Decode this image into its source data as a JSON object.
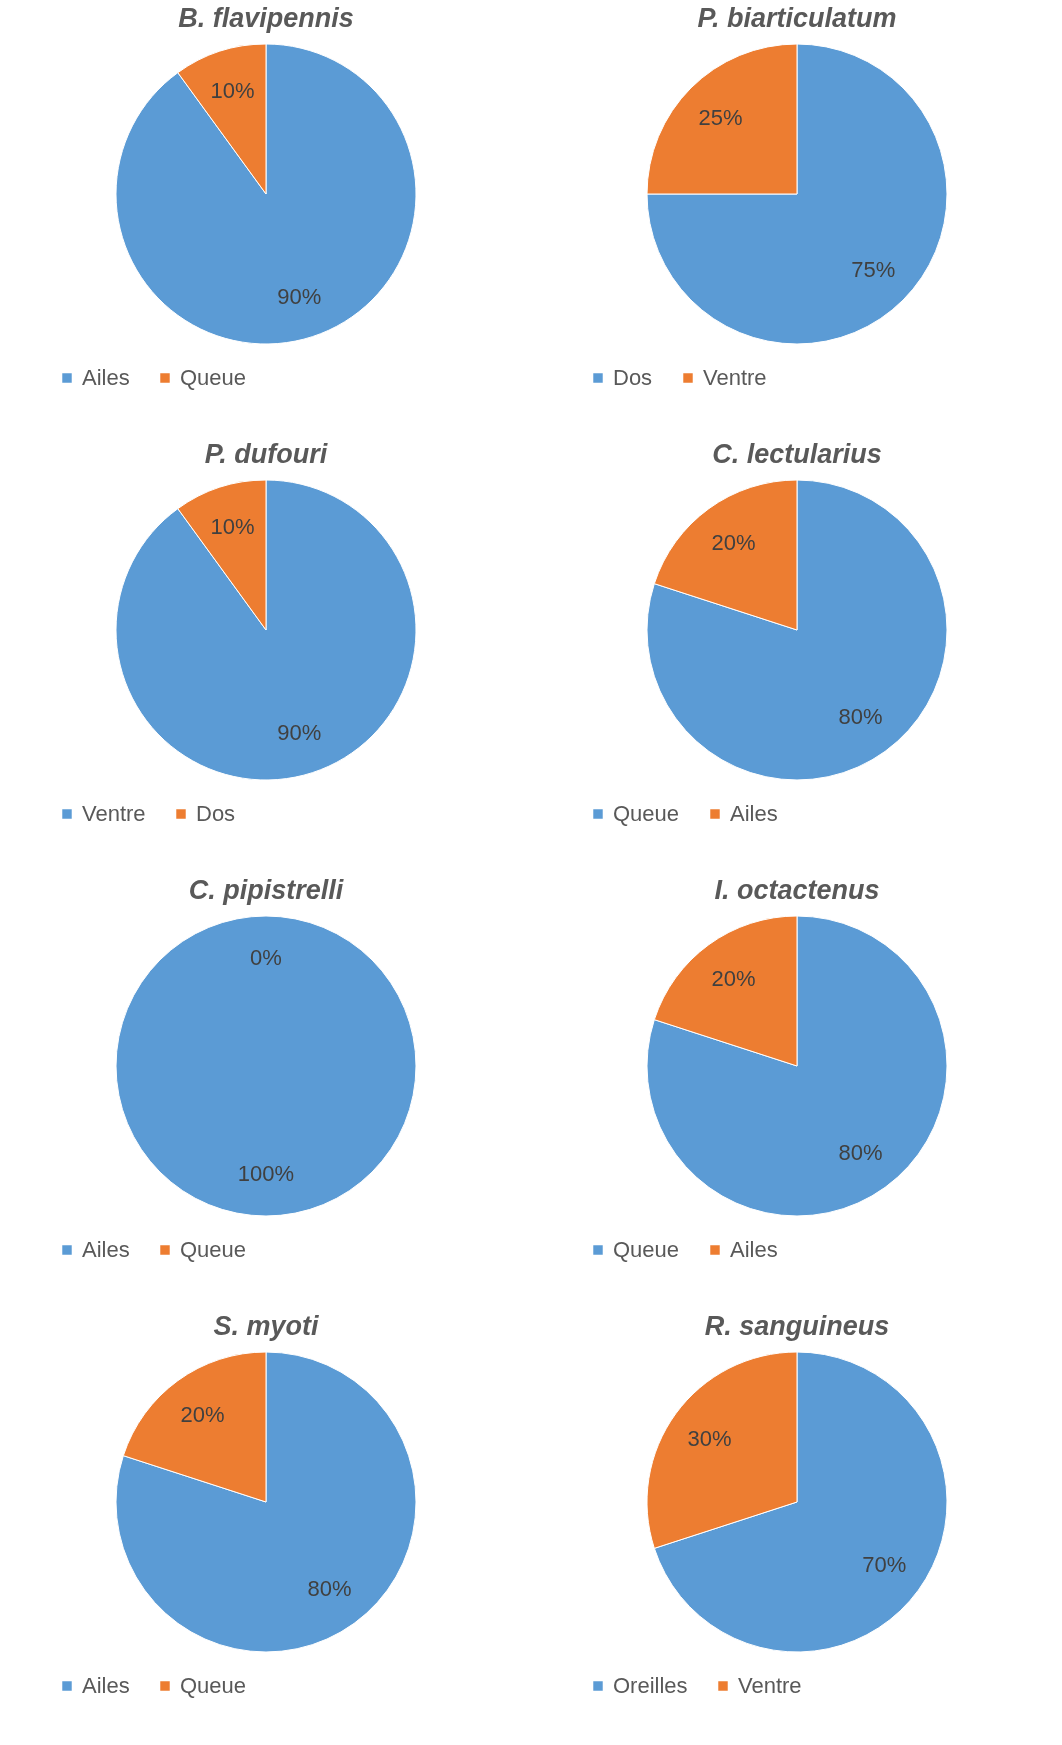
{
  "chart_data": [
    {
      "type": "pie",
      "title": "B. flavipennis",
      "categories": [
        "Ailes",
        "Queue"
      ],
      "values": [
        90,
        10
      ],
      "colors": [
        "#5b9bd5",
        "#ed7d31"
      ],
      "value_labels": [
        "90%",
        "10%"
      ],
      "legend": "bottom"
    },
    {
      "type": "pie",
      "title": "P. biarticulatum",
      "categories": [
        "Dos",
        "Ventre"
      ],
      "values": [
        75,
        25
      ],
      "colors": [
        "#5b9bd5",
        "#ed7d31"
      ],
      "value_labels": [
        "75%",
        "25%"
      ],
      "legend": "bottom"
    },
    {
      "type": "pie",
      "title": "P. dufouri",
      "categories": [
        "Ventre",
        "Dos"
      ],
      "values": [
        90,
        10
      ],
      "colors": [
        "#5b9bd5",
        "#ed7d31"
      ],
      "value_labels": [
        "90%",
        "10%"
      ],
      "legend": "bottom"
    },
    {
      "type": "pie",
      "title": "C. lectularius",
      "categories": [
        "Queue",
        "Ailes"
      ],
      "values": [
        80,
        20
      ],
      "colors": [
        "#5b9bd5",
        "#ed7d31"
      ],
      "value_labels": [
        "80%",
        "20%"
      ],
      "legend": "bottom"
    },
    {
      "type": "pie",
      "title": "C. pipistrelli",
      "categories": [
        "Ailes",
        "Queue"
      ],
      "values": [
        100,
        0
      ],
      "colors": [
        "#5b9bd5",
        "#ed7d31"
      ],
      "value_labels": [
        "100%",
        "0%"
      ],
      "legend": "bottom"
    },
    {
      "type": "pie",
      "title": "I. octactenus",
      "categories": [
        "Queue",
        "Ailes"
      ],
      "values": [
        80,
        20
      ],
      "colors": [
        "#5b9bd5",
        "#ed7d31"
      ],
      "value_labels": [
        "80%",
        "20%"
      ],
      "legend": "bottom"
    },
    {
      "type": "pie",
      "title": "S. myoti",
      "categories": [
        "Ailes",
        "Queue"
      ],
      "values": [
        80,
        20
      ],
      "colors": [
        "#5b9bd5",
        "#ed7d31"
      ],
      "value_labels": [
        "80%",
        "20%"
      ],
      "legend": "bottom"
    },
    {
      "type": "pie",
      "title": "R. sanguineus",
      "categories": [
        "Oreilles",
        "Ventre"
      ],
      "values": [
        70,
        30
      ],
      "colors": [
        "#5b9bd5",
        "#ed7d31"
      ],
      "value_labels": [
        "70%",
        "30%"
      ],
      "legend": "bottom"
    }
  ]
}
